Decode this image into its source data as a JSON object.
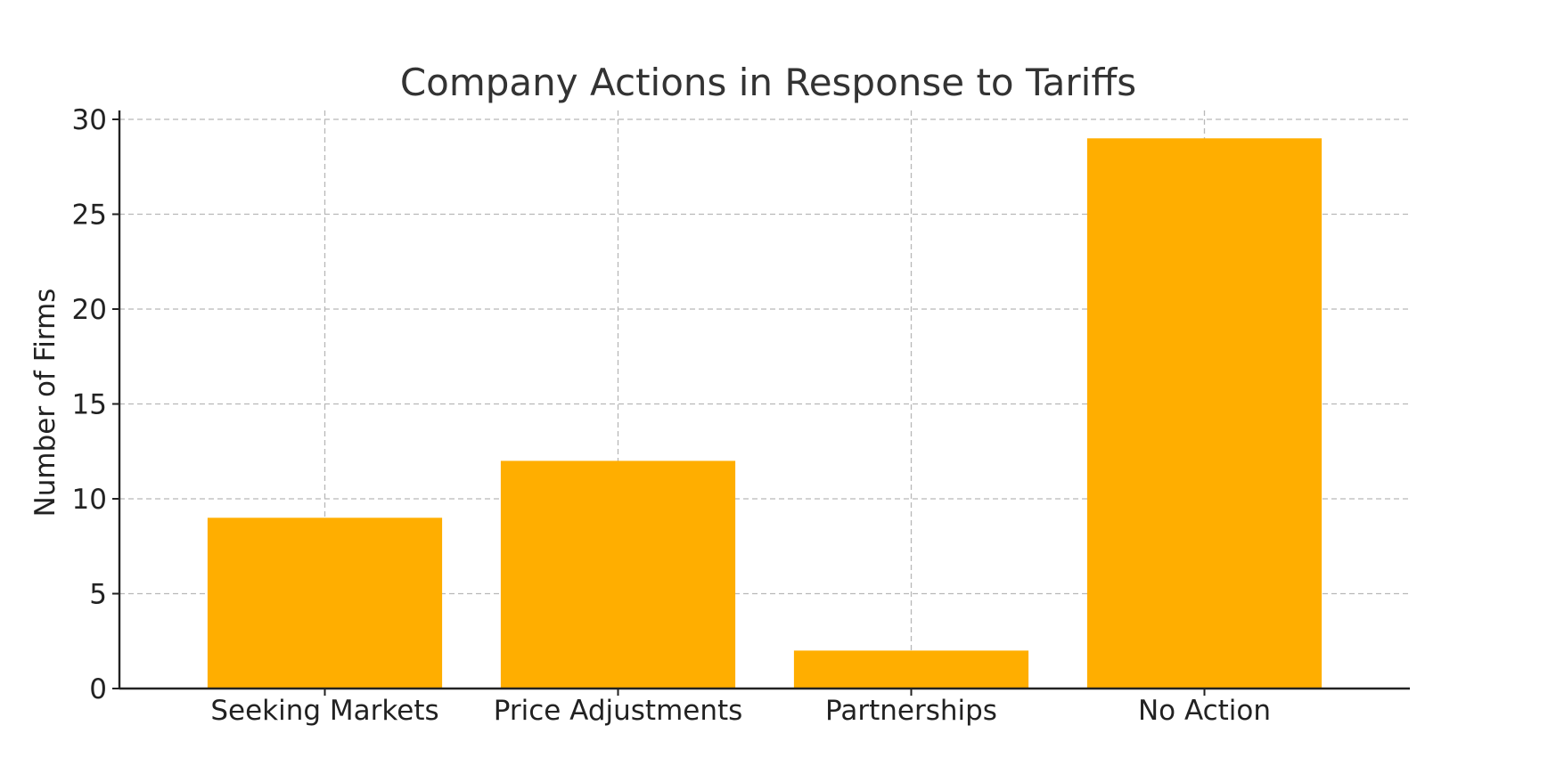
{
  "chart_data": {
    "type": "bar",
    "title": "Company Actions in Response to Tariffs",
    "xlabel": "",
    "ylabel": "Number of Firms",
    "categories": [
      "Seeking Markets",
      "Price Adjustments",
      "Partnerships",
      "No Action"
    ],
    "values": [
      9,
      12,
      2,
      29
    ],
    "ylim": [
      0,
      30
    ],
    "yticks": [
      "0",
      "5",
      "10",
      "15",
      "20",
      "25",
      "30"
    ],
    "grid": true,
    "legend": "none",
    "bar_color": "#ffae00"
  }
}
